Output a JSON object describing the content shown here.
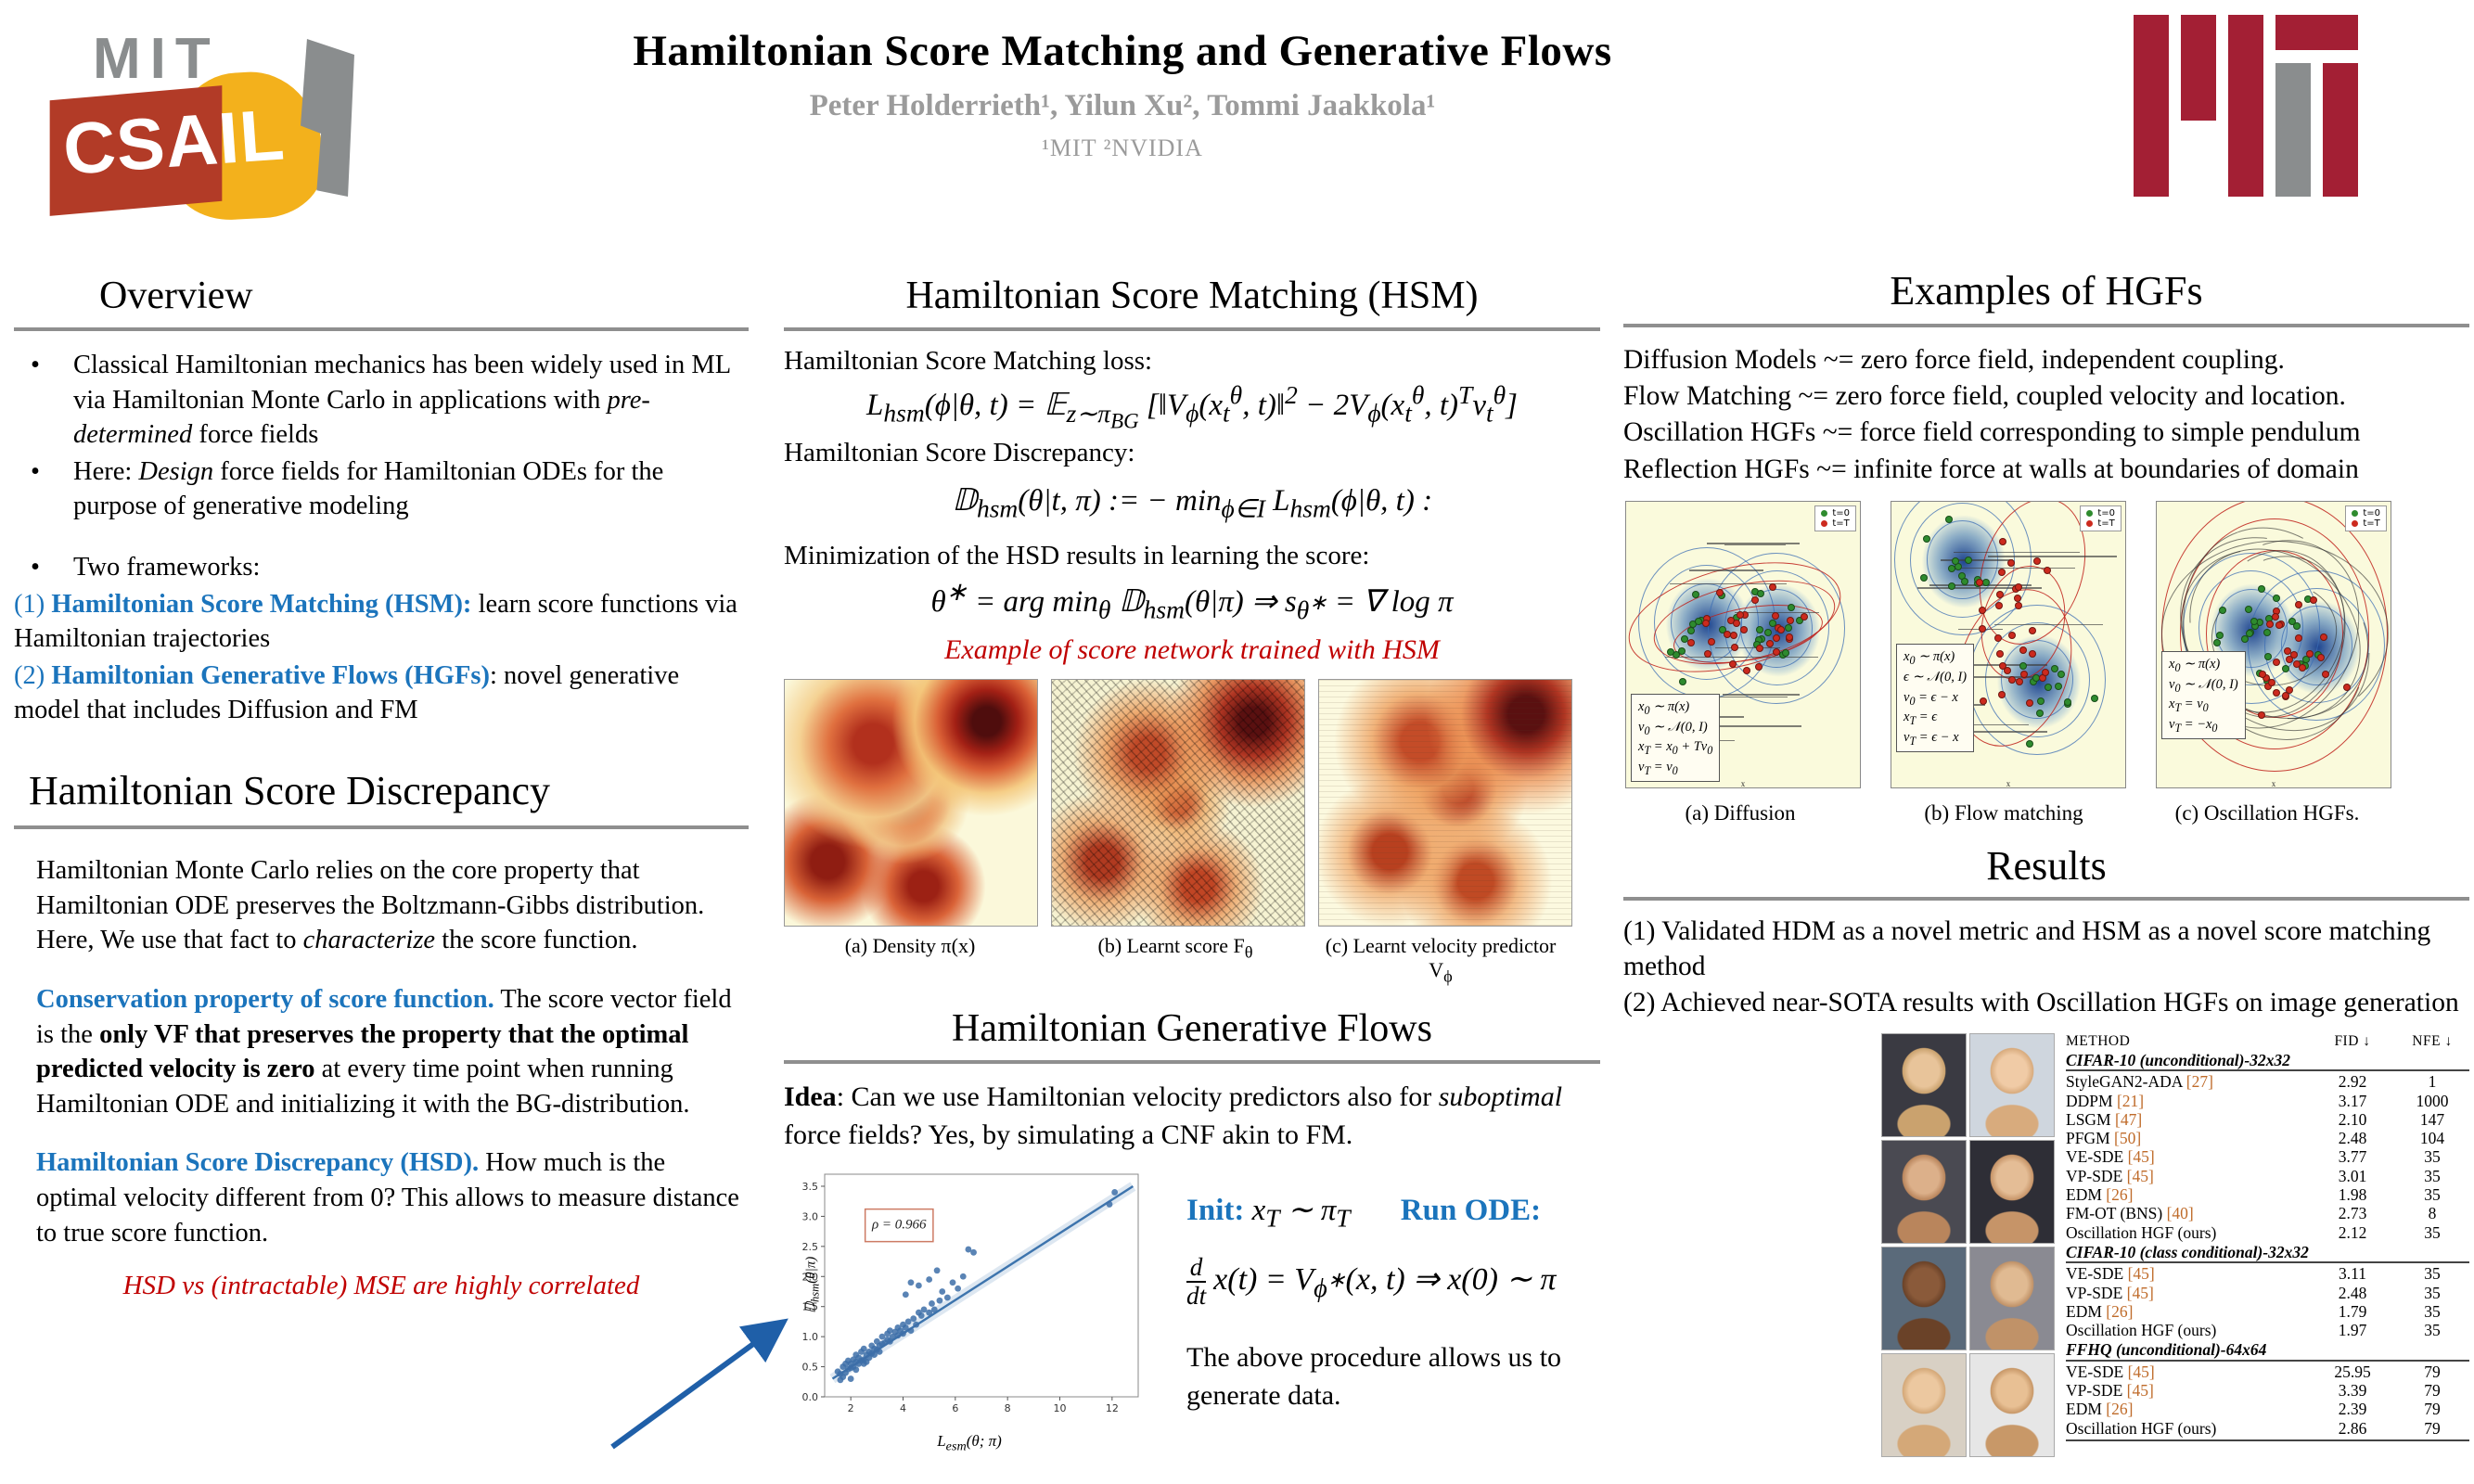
{
  "header": {
    "title": "Hamiltonian Score Matching and Generative Flows",
    "authors": "Peter Holderrieth¹, Yilun Xu², Tommi Jaakkola¹",
    "affiliations": "¹MIT  ²NVIDIA",
    "csail_mit": "MIT",
    "csail_word": "CSAIL"
  },
  "left": {
    "overview": {
      "heading": "Overview",
      "b1_pre": "Classical Hamiltonian mechanics has been widely used in ML via Hamiltonian Monte Carlo in applications with ",
      "b1_it": "pre-determined",
      "b1_post": " force fields",
      "b2_pre": "Here: ",
      "b2_it": "Design",
      "b2_post": " force fields for Hamiltonian ODEs for the purpose of generative modeling",
      "b3": "Two frameworks:",
      "fw1_num": "(1) ",
      "fw1_bold": "Hamiltonian Score Matching (HSM):",
      "fw1_rest": " learn score functions via Hamiltonian trajectories",
      "fw2_num": "(2) ",
      "fw2_bold": "Hamiltonian Generative Flows (HGFs)",
      "fw2_rest": ": novel generative model that includes Diffusion and FM"
    },
    "hsd": {
      "heading": "Hamiltonian Score Discrepancy",
      "p1_pre": "Hamiltonian Monte Carlo relies on the core property that Hamiltonian ODE preserves the Boltzmann-Gibbs distribution. Here, We use that fact to ",
      "p1_it": "characterize",
      "p1_post": " the score function.",
      "p2_blue": "Conservation property of score function.",
      "p2_pre": "  The score vector field is the ",
      "p2_bold": "only VF that preserves the property that the optimal predicted velocity is zero",
      "p2_post": " at every time point when running Hamiltonian ODE and initializing it with the BG-distribution.",
      "p3_blue": "Hamiltonian Score Discrepancy (HSD).",
      "p3_post": " How much is the optimal velocity different from 0? This allows to measure distance to true score function.",
      "red_note": "HSD vs (intractable) MSE are highly correlated"
    }
  },
  "middle": {
    "heading": "Hamiltonian Score Matching (HSM)",
    "loss_label": "Hamiltonian Score Matching loss:",
    "loss_formula": "L<sub>hsm</sub>(ϕ|θ, t) = 𝔼<sub>z∼π<sub>BG</sub></sub> [‖V<sub>ϕ</sub>(x<sub>t</sub><sup>θ</sup>, t)‖<sup>2</sup> − 2V<sub>ϕ</sub>(x<sub>t</sub><sup>θ</sup>, t)<sup>T</sup>v<sub>t</sub><sup>θ</sup>]",
    "disc_label": "Hamiltonian Score Discrepancy:",
    "disc_formula": "𝔻<sub>hsm</sub>(θ|t, π) := − min<sub>ϕ∈I</sub> L<sub>hsm</sub>(ϕ|θ, t) :",
    "min_label": "Minimization of the HSD results in learning the score:",
    "min_formula": "θ<sup>∗</sup> = arg min<sub>θ</sub> 𝔻<sub>hsm</sub>(θ|π) ⇒ s<sub>θ<sup>∗</sup></sub> = ∇ log π",
    "red_example": "Example of score network trained with HSM",
    "captions": [
      "(a) Density π(x)",
      "(b) Learnt score F<sub>θ</sub>",
      "(c) Learnt velocity predictor V<sub>ϕ</sub>"
    ],
    "hgf": {
      "heading": "Hamiltonian Generative Flows",
      "idea_bold": "Idea",
      "idea_mid": ": Can we use Hamiltonian velocity predictors also for ",
      "idea_it": "suboptimal",
      "idea_post": " force fields? Yes, by simulating a CNF akin to FM.",
      "init_label": "Init",
      "init_colon": ": ",
      "init_formula": "x<sub>T</sub> ∼ π<sub>T</sub>",
      "run_label": "Run ODE:",
      "ode_formula": "<span class=\"frac\"><span class=\"num\">d</span><span class=\"den\">dt</span></span>x(t) = V<sub>ϕ<sup>∗</sup></sub>(x, t) ⇒ x(0) ∼ π",
      "outro": "The above procedure allows us to generate data."
    }
  },
  "right": {
    "examples": {
      "heading": "Examples of HGFs",
      "lines": [
        "Diffusion Models ~= zero force field, independent coupling.",
        "Flow Matching ~= zero force field, coupled velocity and location.",
        "Oscillation HGFs ~= force field corresponding to simple pendulum",
        "Reflection HGFs ~= infinite force at walls at boundaries of domain"
      ],
      "plots": [
        {
          "caption": "(a) Diffusion",
          "type": "diffusion",
          "legend": [
            "t=0",
            "t=T"
          ],
          "axis": "x",
          "inset": [
            "x<sub>0</sub> ∼ π(x)",
            "v<sub>0</sub> ∼ 𝒩(0, I)",
            "x<sub>T</sub> = x<sub>0</sub> + Tv<sub>0</sub>",
            "v<sub>T</sub> = v<sub>0</sub>"
          ]
        },
        {
          "caption": "(b) Flow matching",
          "type": "flow",
          "legend": [
            "t=0",
            "t=T"
          ],
          "axis": "x",
          "inset": [
            "x<sub>0</sub> ∼ π(x)",
            "ϵ ∼ 𝒩(0, I)",
            "v<sub>0</sub> = ϵ − x",
            "x<sub>T</sub> = ϵ",
            "v<sub>T</sub> = ϵ − x"
          ]
        },
        {
          "caption": "(c) Oscillation HGFs.",
          "type": "osc",
          "legend": [
            "t=0",
            "t=T"
          ],
          "axis": "x",
          "inset": [
            "x<sub>0</sub> ∼ π(x)",
            "v<sub>0</sub> ∼ 𝒩(0, I)",
            "x<sub>T</sub> = v<sub>0</sub>",
            "v<sub>T</sub> = −x<sub>0</sub>"
          ]
        }
      ],
      "legend_colors": {
        "t0": "#2e8b2e",
        "tT": "#cc2a1e"
      }
    },
    "results": {
      "heading": "Results",
      "line1": "(1) Validated HDM as a novel metric and HSM as a novel score matching method",
      "line2": "(2) Achieved near-SOTA results with Oscillation HGFs on image generation",
      "table": {
        "headers": [
          "METHOD",
          "FID ↓",
          "NFE ↓"
        ],
        "sections": [
          {
            "title": "CIFAR-10 (unconditional)-32x32",
            "rows": [
              {
                "method": "StyleGAN2-ADA ",
                "ref": "[27]",
                "fid": "2.92",
                "nfe": "1"
              },
              {
                "method": "DDPM ",
                "ref": "[21]",
                "fid": "3.17",
                "nfe": "1000"
              },
              {
                "method": "LSGM ",
                "ref": "[47]",
                "fid": "2.10",
                "nfe": "147"
              },
              {
                "method": "PFGM ",
                "ref": "[50]",
                "fid": "2.48",
                "nfe": "104"
              },
              {
                "method": "VE-SDE ",
                "ref": "[45]",
                "fid": "3.77",
                "nfe": "35"
              },
              {
                "method": "VP-SDE ",
                "ref": "[45]",
                "fid": "3.01",
                "nfe": "35"
              },
              {
                "method": "EDM ",
                "ref": "[26]",
                "fid": "1.98",
                "nfe": "35"
              },
              {
                "method": "FM-OT (BNS) ",
                "ref": "[40]",
                "fid": "2.73",
                "nfe": "8"
              },
              {
                "method": "Oscillation HGF (ours)",
                "ref": "",
                "fid": "2.12",
                "nfe": "35"
              }
            ]
          },
          {
            "title": "CIFAR-10 (class conditional)-32x32",
            "rows": [
              {
                "method": "VE-SDE ",
                "ref": "[45]",
                "fid": "3.11",
                "nfe": "35"
              },
              {
                "method": "VP-SDE ",
                "ref": "[45]",
                "fid": "2.48",
                "nfe": "35"
              },
              {
                "method": "EDM ",
                "ref": "[26]",
                "fid": "1.79",
                "nfe": "35"
              },
              {
                "method": "Oscillation HGF (ours)",
                "ref": "",
                "fid": "1.97",
                "nfe": "35"
              }
            ]
          },
          {
            "title": "FFHQ (unconditional)-64x64",
            "rows": [
              {
                "method": "VE-SDE ",
                "ref": "[45]",
                "fid": "25.95",
                "nfe": "79"
              },
              {
                "method": "VP-SDE ",
                "ref": "[45]",
                "fid": "3.39",
                "nfe": "79"
              },
              {
                "method": "EDM ",
                "ref": "[26]",
                "fid": "2.39",
                "nfe": "79"
              },
              {
                "method": "Oscillation HGF (ours)",
                "ref": "",
                "fid": "2.86",
                "nfe": "79"
              }
            ]
          }
        ]
      }
    }
  },
  "chart_data": {
    "type": "scatter",
    "title": "",
    "xlabel": "L_esm(θ; π)",
    "ylabel": "D_hsm(θ|π)",
    "xlabel_html": "L<sub>esm</sub>(θ; π)",
    "ylabel_html": "𝔻<sub>hsm</sub>(θ|π)",
    "xlim": [
      1,
      13
    ],
    "ylim": [
      0,
      3.7
    ],
    "xticks": [
      2,
      4,
      6,
      8,
      10,
      12
    ],
    "yticks": [
      0.0,
      0.5,
      1.0,
      1.5,
      2.0,
      2.5,
      3.0,
      3.5
    ],
    "grid": false,
    "annotation": "ρ = 0.966",
    "trend": {
      "x1": 1.3,
      "y1": 0.3,
      "x2": 12.8,
      "y2": 3.5
    },
    "point_color": "#3d6fa8",
    "points": [
      [
        1.5,
        0.42
      ],
      [
        1.6,
        0.38
      ],
      [
        1.6,
        0.28
      ],
      [
        1.7,
        0.5
      ],
      [
        1.7,
        0.33
      ],
      [
        1.8,
        0.55
      ],
      [
        1.8,
        0.4
      ],
      [
        1.9,
        0.46
      ],
      [
        1.9,
        0.6
      ],
      [
        2.0,
        0.48
      ],
      [
        2.0,
        0.55
      ],
      [
        2.0,
        0.3
      ],
      [
        2.1,
        0.62
      ],
      [
        2.1,
        0.5
      ],
      [
        2.2,
        0.58
      ],
      [
        2.2,
        0.45
      ],
      [
        2.2,
        0.7
      ],
      [
        2.3,
        0.55
      ],
      [
        2.3,
        0.65
      ],
      [
        2.4,
        0.6
      ],
      [
        2.4,
        0.75
      ],
      [
        2.5,
        0.62
      ],
      [
        2.5,
        0.55
      ],
      [
        2.5,
        0.8
      ],
      [
        2.6,
        0.7
      ],
      [
        2.6,
        0.58
      ],
      [
        2.7,
        0.75
      ],
      [
        2.7,
        0.65
      ],
      [
        2.8,
        0.72
      ],
      [
        2.8,
        0.85
      ],
      [
        2.9,
        0.7
      ],
      [
        2.9,
        0.8
      ],
      [
        3.0,
        0.78
      ],
      [
        3.0,
        0.92
      ],
      [
        3.1,
        0.85
      ],
      [
        3.1,
        0.75
      ],
      [
        3.2,
        0.88
      ],
      [
        3.2,
        1.0
      ],
      [
        3.3,
        0.9
      ],
      [
        3.4,
        0.95
      ],
      [
        3.4,
        1.05
      ],
      [
        3.5,
        0.92
      ],
      [
        3.5,
        1.1
      ],
      [
        3.6,
        1.0
      ],
      [
        3.7,
        1.08
      ],
      [
        3.8,
        1.02
      ],
      [
        3.8,
        1.15
      ],
      [
        3.9,
        1.1
      ],
      [
        4.0,
        1.05
      ],
      [
        4.0,
        1.2
      ],
      [
        4.1,
        1.15
      ],
      [
        4.1,
        1.7
      ],
      [
        4.2,
        1.25
      ],
      [
        4.3,
        1.1
      ],
      [
        4.3,
        1.9
      ],
      [
        4.4,
        1.3
      ],
      [
        4.5,
        1.2
      ],
      [
        4.6,
        1.4
      ],
      [
        4.6,
        1.85
      ],
      [
        4.7,
        1.35
      ],
      [
        4.8,
        1.45
      ],
      [
        5.0,
        1.4
      ],
      [
        5.0,
        1.95
      ],
      [
        5.1,
        1.55
      ],
      [
        5.2,
        1.45
      ],
      [
        5.3,
        2.1
      ],
      [
        5.4,
        1.6
      ],
      [
        5.5,
        1.75
      ],
      [
        5.7,
        1.65
      ],
      [
        5.9,
        1.9
      ],
      [
        6.1,
        1.8
      ],
      [
        6.3,
        2.0
      ],
      [
        6.5,
        2.45
      ],
      [
        6.7,
        2.4
      ],
      [
        11.9,
        3.2
      ],
      [
        12.1,
        3.4
      ]
    ]
  }
}
